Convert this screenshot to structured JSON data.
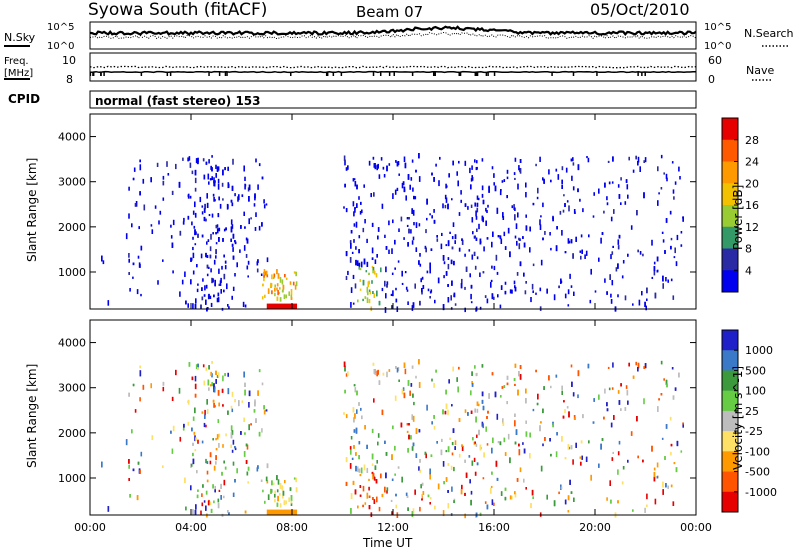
{
  "header": {
    "title": "Syowa South (fitACF)",
    "beam": "Beam 07",
    "date": "05/Oct/2010"
  },
  "summary": {
    "nsky_label": "N.Sky",
    "nsearch_label": "N.Search",
    "nsky_ticks": [
      "10^5",
      "10^0"
    ],
    "nsearch_ticks": [
      "10^5",
      "10^0"
    ],
    "freq_label": "Freq.",
    "freq_unit": "[MHz]",
    "freq_ticks": [
      "10",
      "8"
    ],
    "nave_label": "Nave",
    "nave_ticks": [
      "60",
      "0"
    ],
    "cpid_label": "CPID",
    "cpid_text": "normal (fast stereo) 153"
  },
  "chart_data": [
    {
      "type": "heatmap",
      "quantity": "Power",
      "ylabel": "Slant Range [km]",
      "yticks": [
        "4000",
        "3000",
        "2000",
        "1000"
      ],
      "ylim": [
        180,
        4500
      ],
      "colorbar_label": "Power [dB]",
      "colorbar_ticks": [
        "28",
        "24",
        "20",
        "16",
        "12",
        "8",
        "4"
      ],
      "colorbar_colors": [
        "#e60000",
        "#ff5a00",
        "#ff9900",
        "#f2c100",
        "#99cc33",
        "#339966",
        "#2a2aa5",
        "#0000ee"
      ],
      "xlim": [
        0,
        24
      ]
    },
    {
      "type": "heatmap",
      "quantity": "Velocity",
      "ylabel": "Slant Range [km]",
      "yticks": [
        "4000",
        "3000",
        "2000",
        "1000"
      ],
      "ylim": [
        180,
        4500
      ],
      "colorbar_label": "Velocity [m s^-1]",
      "colorbar_ticks": [
        "1000",
        "500",
        "100",
        "25",
        "-25",
        "-100",
        "-500",
        "-1000"
      ],
      "colorbar_colors": [
        "#2020c8",
        "#3a78c8",
        "#3c9a3c",
        "#66cc44",
        "#bdbdbd",
        "#ffe066",
        "#ff9900",
        "#ff5500",
        "#e60000"
      ],
      "xlim": [
        0,
        24
      ]
    }
  ],
  "xaxis": {
    "ticks": [
      "00:00",
      "04:00",
      "08:00",
      "12:00",
      "16:00",
      "20:00",
      "00:00"
    ],
    "tick_hours": [
      0,
      4,
      8,
      12,
      16,
      20,
      24
    ],
    "label": "Time UT"
  }
}
